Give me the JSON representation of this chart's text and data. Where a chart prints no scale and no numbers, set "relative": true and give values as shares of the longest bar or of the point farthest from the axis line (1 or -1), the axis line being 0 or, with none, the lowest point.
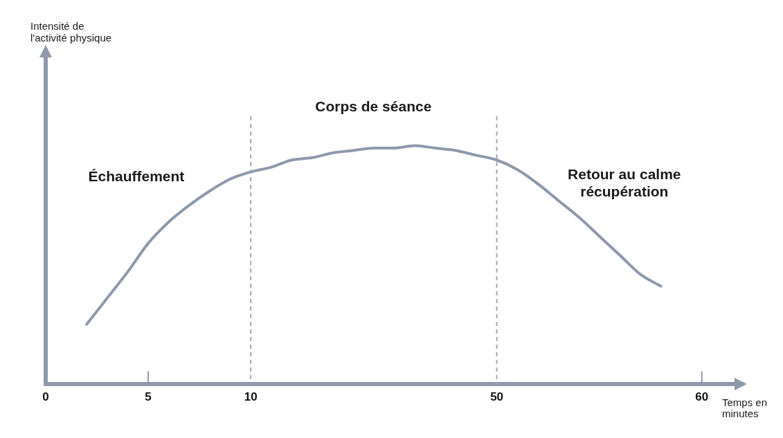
{
  "chart_data": {
    "type": "line",
    "relative": true,
    "xlabel": "Temps en minutes",
    "categories": [
      "0",
      null,
      null,
      null,
      null,
      "5",
      null,
      null,
      null,
      null,
      "10",
      null,
      null,
      null,
      null,
      null,
      null,
      null,
      null,
      null,
      null,
      null,
      "50",
      null,
      null,
      null,
      null,
      null,
      null,
      null,
      null,
      null,
      "60",
      null,
      null
    ],
    "series": [
      {
        "color": "#8e99ab",
        "values": [
          null,
          null,
          0.25,
          0.36,
          0.47,
          0.59,
          0.68,
          0.75,
          0.81,
          0.86,
          0.89,
          0.91,
          0.94,
          0.95,
          0.97,
          0.98,
          0.99,
          0.99,
          1,
          0.99,
          0.98,
          0.96,
          0.94,
          0.9,
          0.84,
          0.77,
          0.7,
          0.62,
          0.54,
          0.46,
          0.41,
          null,
          null,
          null,
          null
        ]
      }
    ],
    "ref_lines": [
      {
        "axis": "x",
        "value": "10",
        "color": "#a0a8b8",
        "line_style": "dashed"
      },
      {
        "axis": "x",
        "value": "50",
        "color": "#a0a8b8",
        "line_style": "dashed"
      }
    ],
    "annotations": [
      "Échauffement",
      "Corps de séance",
      "Retour au calme\nrécupération",
      "Intensité de\nl'activité physique"
    ],
    "grid": false,
    "legend": false,
    "marker": "none",
    "line_style": "solid"
  }
}
